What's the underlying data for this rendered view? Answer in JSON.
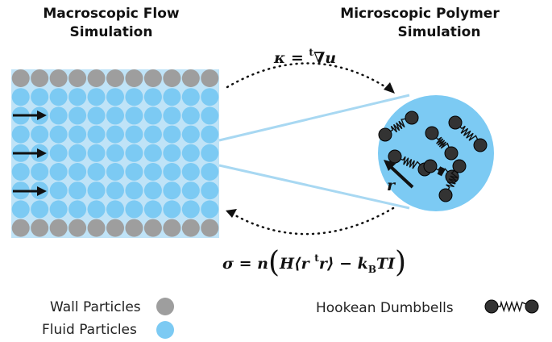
{
  "left_title": [
    "Macroscopic Flow",
    "Simulation"
  ],
  "right_title": [
    "Microscopic Polymer",
    "Simulation"
  ],
  "equation_top": [
    "κ = ",
    "t",
    "∇u"
  ],
  "equation_bottom": [
    "σ = n",
    "(",
    "H⟨r ",
    "t",
    "r⟩ − k",
    "B",
    "TI",
    ")"
  ],
  "vector_label": "r",
  "legend": {
    "wall": "Wall Particles",
    "fluid": "Fluid Particles",
    "dumbbell": "Hookean Dumbbells"
  }
}
